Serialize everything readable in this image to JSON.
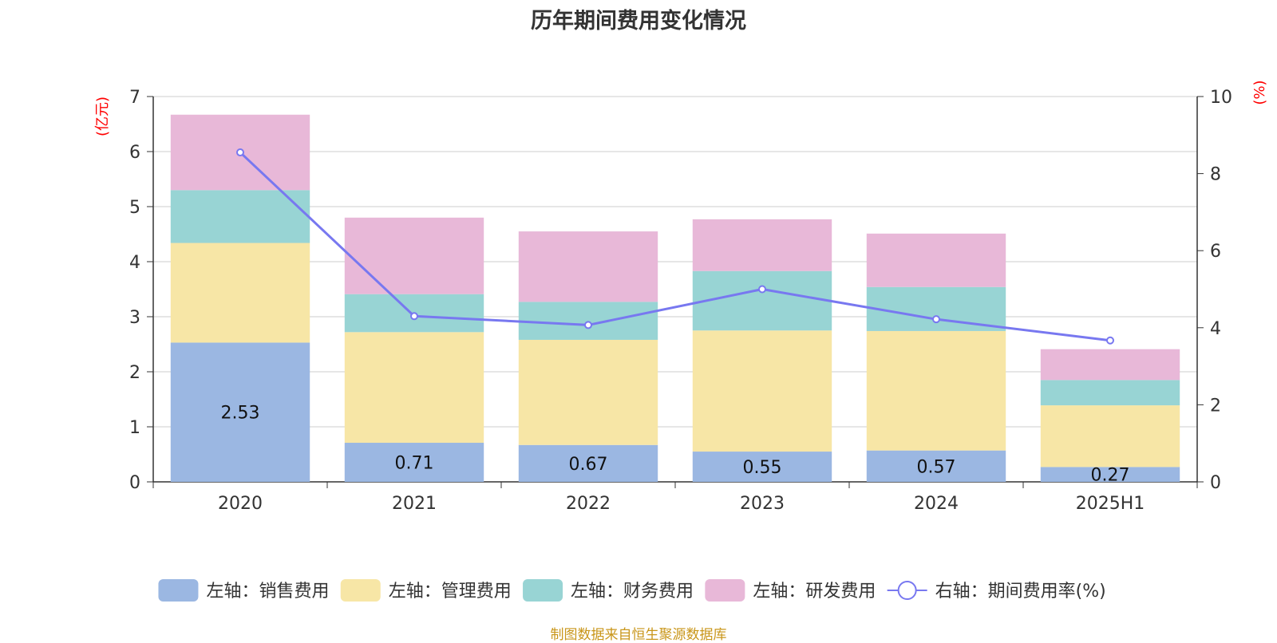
{
  "chart_data": {
    "type": "bar",
    "title": "历年期间费用变化情况",
    "categories": [
      "2020",
      "2021",
      "2022",
      "2023",
      "2024",
      "2025H1"
    ],
    "left_axis": {
      "unit_label": "(亿元)",
      "ylim": [
        0,
        7
      ],
      "ticks": [
        "0",
        "1",
        "2",
        "3",
        "4",
        "5",
        "6",
        "7"
      ]
    },
    "right_axis": {
      "unit_label": "(%)",
      "ylim": [
        0,
        10
      ],
      "ticks": [
        "0",
        "2",
        "4",
        "6",
        "8",
        "10"
      ]
    },
    "stacked": true,
    "grid": true,
    "legend_position": "bottom",
    "series": [
      {
        "name": "左轴：销售费用",
        "type": "bar",
        "axis": "left",
        "color": "#9bb7e2",
        "values": [
          2.53,
          0.71,
          0.67,
          0.55,
          0.57,
          0.27
        ],
        "data_labels": [
          "2.53",
          "0.71",
          "0.67",
          "0.55",
          "0.57",
          "0.27"
        ]
      },
      {
        "name": "左轴：管理费用",
        "type": "bar",
        "axis": "left",
        "color": "#f7e6a6",
        "values": [
          1.81,
          2.01,
          1.91,
          2.2,
          2.17,
          1.12
        ]
      },
      {
        "name": "左轴：财务费用",
        "type": "bar",
        "axis": "left",
        "color": "#98d4d4",
        "values": [
          0.96,
          0.69,
          0.69,
          1.08,
          0.8,
          0.46
        ]
      },
      {
        "name": "左轴：研发费用",
        "type": "bar",
        "axis": "left",
        "color": "#e8b8d8",
        "values": [
          1.37,
          1.39,
          1.28,
          0.94,
          0.97,
          0.56
        ]
      },
      {
        "name": "右轴：期间费用率(%)",
        "type": "line",
        "axis": "right",
        "color": "#7878f0",
        "values": [
          8.55,
          4.3,
          4.07,
          5.0,
          4.22,
          3.67
        ]
      }
    ]
  },
  "footer": {
    "note": "制图数据来自恒生聚源数据库"
  }
}
